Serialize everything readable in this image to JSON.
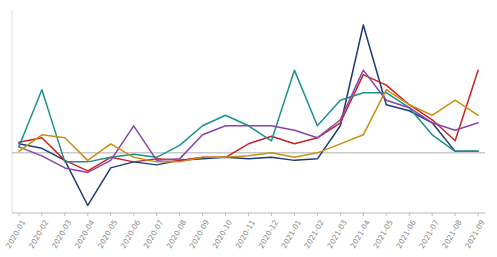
{
  "chart_data": {
    "type": "line",
    "categories": [
      "2020-01",
      "2020-02",
      "2020-03",
      "2020-04",
      "2020-05",
      "2020-06",
      "2020-07",
      "2020-08",
      "2020-09",
      "2020-10",
      "2020-11",
      "2020-12",
      "2021-01",
      "2021-02",
      "2021-03",
      "2021-04",
      "2021-05",
      "2021-06",
      "2021-07",
      "2021-08",
      "2021-09"
    ],
    "series": [
      {
        "color": "#1a3c78",
        "values": [
          0.6,
          0.3,
          -0.5,
          -3.5,
          -1.0,
          -0.6,
          -0.8,
          -0.5,
          -0.4,
          -0.3,
          -0.4,
          -0.3,
          -0.5,
          -0.4,
          1.8,
          8.5,
          3.2,
          2.8,
          2.0,
          0.1,
          0.1
        ]
      },
      {
        "color": "#cc2222",
        "values": [
          0.7,
          1.0,
          -0.5,
          -1.2,
          -0.3,
          -0.6,
          -0.4,
          -0.5,
          -0.3,
          -0.3,
          0.6,
          1.1,
          0.6,
          1.0,
          2.0,
          5.2,
          4.5,
          3.2,
          2.2,
          0.8,
          5.5
        ]
      },
      {
        "color": "#1a9090",
        "values": [
          0.4,
          4.2,
          -0.6,
          -0.6,
          -0.3,
          -0.1,
          -0.3,
          0.5,
          1.8,
          2.5,
          1.8,
          0.8,
          5.5,
          1.8,
          3.5,
          4.0,
          4.0,
          3.0,
          1.2,
          0.1,
          0.1
        ]
      },
      {
        "color": "#8844aa",
        "values": [
          0.4,
          -0.2,
          -1.0,
          -1.3,
          -0.5,
          1.8,
          -0.5,
          -0.4,
          1.2,
          1.8,
          1.8,
          1.8,
          1.5,
          1.0,
          2.2,
          5.5,
          3.5,
          3.0,
          2.0,
          1.5,
          2.0
        ]
      },
      {
        "color": "#c89010",
        "values": [
          0.1,
          1.2,
          1.0,
          -0.5,
          0.6,
          -0.3,
          -0.6,
          -0.6,
          -0.3,
          -0.3,
          -0.2,
          0.0,
          -0.3,
          0.0,
          0.6,
          1.2,
          4.2,
          3.2,
          2.5,
          3.5,
          2.5
        ]
      }
    ],
    "ylim": [
      -4.0,
      9.5
    ],
    "yticks": [
      0
    ],
    "grid": true,
    "tick_labels": "x"
  }
}
